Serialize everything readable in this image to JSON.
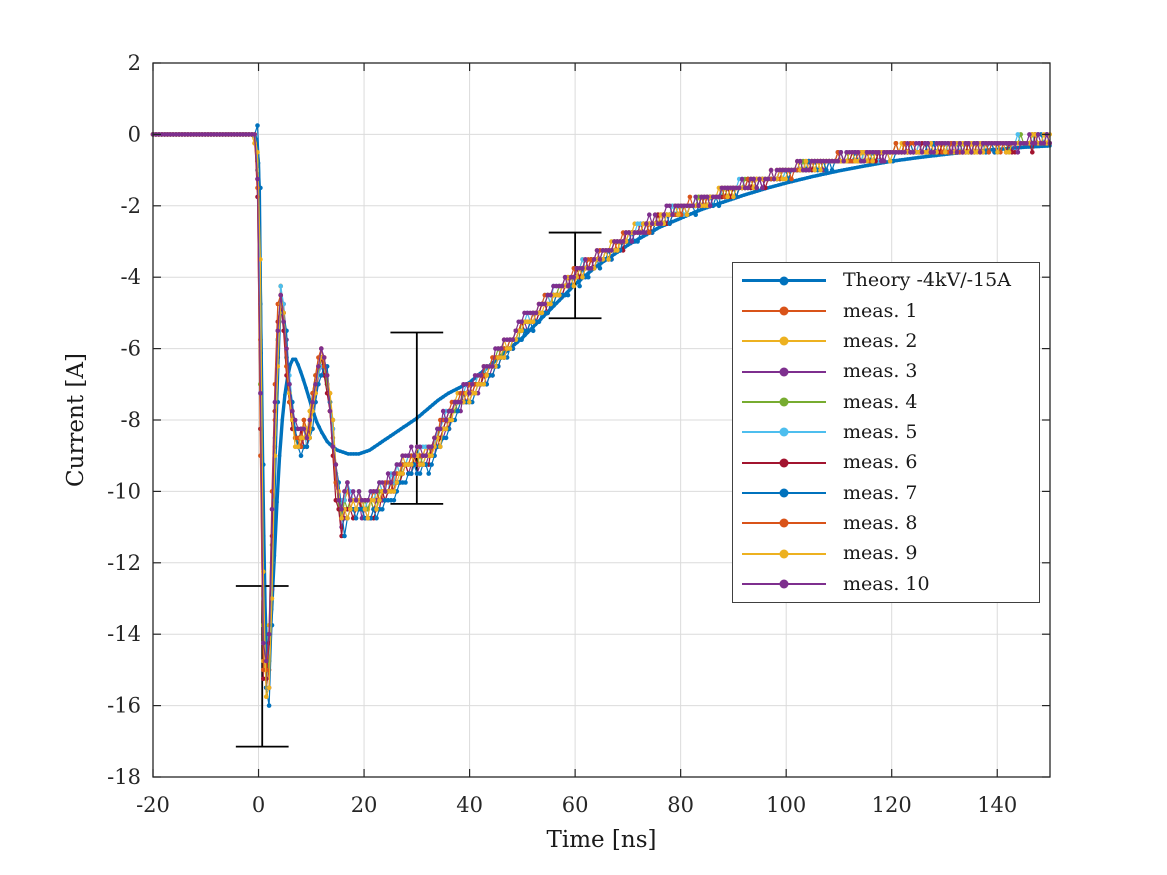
{
  "chart_data": {
    "type": "line",
    "title": "",
    "xlabel": "Time [ns]",
    "ylabel": "Current [A]",
    "xlim": [
      -20,
      150
    ],
    "ylim": [
      -18,
      2
    ],
    "xticks": [
      -20,
      0,
      20,
      40,
      60,
      80,
      100,
      120,
      140
    ],
    "yticks": [
      2,
      0,
      -2,
      -4,
      -6,
      -8,
      -10,
      -12,
      -14,
      -16,
      -18
    ],
    "grid": true,
    "legend_position": "inside-right",
    "colors": {
      "axis": "#262626",
      "grid": "#dbdbdb",
      "errorbar": "#000000",
      "legend_border": "#404040",
      "text": "#1a1a1a"
    },
    "series": [
      {
        "name": "Theory -4kV/-15A",
        "color": "#0072BD",
        "kind": "theory",
        "keypoints": [
          [
            -20,
            0
          ],
          [
            -0.6,
            0
          ],
          [
            0,
            -0.8
          ],
          [
            0.4,
            -5
          ],
          [
            0.8,
            -9.5
          ],
          [
            1.2,
            -13
          ],
          [
            1.6,
            -14.9
          ],
          [
            2,
            -14.4
          ],
          [
            2.5,
            -13.3
          ],
          [
            3,
            -11.8
          ],
          [
            3.5,
            -10.3
          ],
          [
            4,
            -9
          ],
          [
            4.5,
            -8
          ],
          [
            5,
            -7.3
          ],
          [
            5.5,
            -6.8
          ],
          [
            6,
            -6.45
          ],
          [
            6.5,
            -6.3
          ],
          [
            7,
            -6.3
          ],
          [
            7.5,
            -6.45
          ],
          [
            8,
            -6.65
          ],
          [
            9,
            -7.1
          ],
          [
            10,
            -7.6
          ],
          [
            11,
            -8.05
          ],
          [
            12,
            -8.35
          ],
          [
            13,
            -8.6
          ],
          [
            14,
            -8.75
          ],
          [
            15,
            -8.85
          ],
          [
            16,
            -8.9
          ],
          [
            17,
            -8.95
          ],
          [
            18,
            -8.95
          ],
          [
            19,
            -8.95
          ],
          [
            20,
            -8.9
          ],
          [
            21,
            -8.85
          ],
          [
            22,
            -8.75
          ],
          [
            23,
            -8.65
          ],
          [
            24,
            -8.55
          ],
          [
            25,
            -8.45
          ],
          [
            26,
            -8.35
          ],
          [
            27,
            -8.25
          ],
          [
            28,
            -8.15
          ],
          [
            29,
            -8.05
          ],
          [
            30,
            -7.95
          ],
          [
            32,
            -7.7
          ],
          [
            34,
            -7.45
          ],
          [
            36,
            -7.25
          ],
          [
            38,
            -7.1
          ],
          [
            40,
            -6.95
          ],
          [
            42,
            -6.7
          ],
          [
            44,
            -6.45
          ],
          [
            46,
            -6.2
          ],
          [
            48,
            -5.95
          ],
          [
            50,
            -5.7
          ],
          [
            52,
            -5.4
          ],
          [
            54,
            -5.1
          ],
          [
            56,
            -4.8
          ],
          [
            58,
            -4.5
          ],
          [
            60,
            -4.2
          ],
          [
            62,
            -3.95
          ],
          [
            64,
            -3.7
          ],
          [
            66,
            -3.5
          ],
          [
            68,
            -3.3
          ],
          [
            70,
            -3.1
          ],
          [
            73,
            -2.85
          ],
          [
            76,
            -2.6
          ],
          [
            80,
            -2.35
          ],
          [
            84,
            -2.1
          ],
          [
            88,
            -1.9
          ],
          [
            92,
            -1.7
          ],
          [
            96,
            -1.52
          ],
          [
            100,
            -1.36
          ],
          [
            105,
            -1.18
          ],
          [
            110,
            -1.02
          ],
          [
            115,
            -0.88
          ],
          [
            120,
            -0.75
          ],
          [
            125,
            -0.65
          ],
          [
            130,
            -0.56
          ],
          [
            135,
            -0.48
          ],
          [
            140,
            -0.42
          ],
          [
            145,
            -0.36
          ],
          [
            150,
            -0.32
          ]
        ]
      },
      {
        "name": "meas. 1",
        "color": "#D95319",
        "kind": "measurement"
      },
      {
        "name": "meas. 2",
        "color": "#EDB120",
        "kind": "measurement"
      },
      {
        "name": "meas. 3",
        "color": "#7E2F8E",
        "kind": "measurement"
      },
      {
        "name": "meas. 4",
        "color": "#77AC30",
        "kind": "measurement"
      },
      {
        "name": "meas. 5",
        "color": "#4DBEEE",
        "kind": "measurement"
      },
      {
        "name": "meas. 6",
        "color": "#A2142F",
        "kind": "measurement"
      },
      {
        "name": "meas. 7",
        "color": "#0072BD",
        "kind": "measurement"
      },
      {
        "name": "meas. 8",
        "color": "#D95319",
        "kind": "measurement"
      },
      {
        "name": "meas. 9",
        "color": "#EDB120",
        "kind": "measurement"
      },
      {
        "name": "meas. 10",
        "color": "#7E2F8E",
        "kind": "measurement"
      }
    ],
    "measurement_base_keypoints": [
      [
        -20,
        0
      ],
      [
        -1,
        0
      ],
      [
        -0.4,
        -0.15
      ],
      [
        0.1,
        -2
      ],
      [
        0.5,
        -8
      ],
      [
        0.8,
        -13
      ],
      [
        1.1,
        -15.1
      ],
      [
        1.5,
        -15.4
      ],
      [
        1.9,
        -15.1
      ],
      [
        2.3,
        -13.2
      ],
      [
        2.7,
        -10.6
      ],
      [
        3.1,
        -8.2
      ],
      [
        3.5,
        -6.3
      ],
      [
        4,
        -4.45
      ],
      [
        4.5,
        -4.6
      ],
      [
        5,
        -5.5
      ],
      [
        5.6,
        -6.8
      ],
      [
        6.2,
        -7.7
      ],
      [
        6.8,
        -8.35
      ],
      [
        7.4,
        -8.6
      ],
      [
        8,
        -8.5
      ],
      [
        8.6,
        -8.3
      ],
      [
        9.2,
        -8.55
      ],
      [
        9.8,
        -8.2
      ],
      [
        10.4,
        -7.4
      ],
      [
        11,
        -6.8
      ],
      [
        11.6,
        -6.4
      ],
      [
        12.2,
        -6.25
      ],
      [
        12.8,
        -6.6
      ],
      [
        13.4,
        -7.3
      ],
      [
        14,
        -8.3
      ],
      [
        14.6,
        -9.4
      ],
      [
        15.2,
        -10.2
      ],
      [
        15.8,
        -10.75
      ],
      [
        16.4,
        -10.4
      ],
      [
        17,
        -10.15
      ],
      [
        17.6,
        -10.3
      ],
      [
        18.4,
        -10.35
      ],
      [
        19,
        -10.2
      ],
      [
        19.6,
        -10.35
      ],
      [
        20.4,
        -10.5
      ],
      [
        21.2,
        -10.35
      ],
      [
        22,
        -10.3
      ],
      [
        23,
        -10.1
      ],
      [
        24,
        -10
      ],
      [
        25,
        -9.9
      ],
      [
        26,
        -9.65
      ],
      [
        27,
        -9.4
      ],
      [
        28,
        -9.2
      ],
      [
        29,
        -9.1
      ],
      [
        30,
        -9.1
      ],
      [
        31,
        -9.1
      ],
      [
        32,
        -9
      ],
      [
        33,
        -8.75
      ],
      [
        34,
        -8.5
      ],
      [
        35,
        -8.2
      ],
      [
        36,
        -7.95
      ],
      [
        37,
        -7.7
      ],
      [
        38,
        -7.5
      ],
      [
        39,
        -7.35
      ],
      [
        40,
        -7.2
      ],
      [
        41,
        -7.05
      ],
      [
        42,
        -6.9
      ],
      [
        43,
        -6.75
      ],
      [
        44,
        -6.55
      ],
      [
        45,
        -6.3
      ],
      [
        46,
        -6.1
      ],
      [
        48,
        -5.8
      ],
      [
        50,
        -5.35
      ],
      [
        52,
        -5.1
      ],
      [
        54,
        -4.8
      ],
      [
        56,
        -4.5
      ],
      [
        58,
        -4.25
      ],
      [
        60,
        -3.95
      ],
      [
        62,
        -3.7
      ],
      [
        64,
        -3.5
      ],
      [
        66,
        -3.3
      ],
      [
        68,
        -3.1
      ],
      [
        70,
        -2.9
      ],
      [
        73,
        -2.6
      ],
      [
        76,
        -2.4
      ],
      [
        80,
        -2.1
      ],
      [
        84,
        -1.9
      ],
      [
        88,
        -1.65
      ],
      [
        92,
        -1.45
      ],
      [
        96,
        -1.25
      ],
      [
        100,
        -1.05
      ],
      [
        105,
        -0.85
      ],
      [
        110,
        -0.7
      ],
      [
        115,
        -0.6
      ],
      [
        120,
        -0.5
      ],
      [
        125,
        -0.45
      ],
      [
        130,
        -0.4
      ],
      [
        135,
        -0.35
      ],
      [
        140,
        -0.3
      ],
      [
        145,
        -0.25
      ],
      [
        150,
        -0.2
      ]
    ],
    "measurement_sampling": {
      "step_ns": 0.55,
      "quantize_A": 0.25
    },
    "error_bars": {
      "cap_halfwidth_ns": 5,
      "points": [
        {
          "x": 0.7,
          "ylow": -17.15,
          "yhigh": -12.65
        },
        {
          "x": 30,
          "ylow": -10.35,
          "yhigh": -5.55
        },
        {
          "x": 60,
          "ylow": -5.15,
          "yhigh": -2.75
        }
      ]
    }
  }
}
